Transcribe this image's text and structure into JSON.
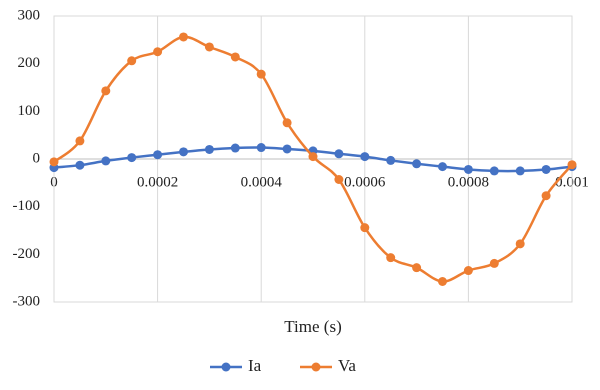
{
  "chart_data": {
    "type": "line",
    "x_label": "Time (s)",
    "x": [
      0,
      5e-05,
      0.0001,
      0.00015,
      0.0002,
      0.00025,
      0.0003,
      0.00035,
      0.0004,
      0.00045,
      0.0005,
      0.00055,
      0.0006,
      0.00065,
      0.0007,
      0.00075,
      0.0008,
      0.00085,
      0.0009,
      0.00095,
      0.001
    ],
    "series": [
      {
        "name": "Ia",
        "color": "#4472c4",
        "values": [
          -18,
          -13,
          -4,
          3,
          9,
          15,
          20,
          23,
          24,
          21,
          17,
          11,
          5,
          -3,
          -10,
          -16,
          -22,
          -25,
          -25,
          -22,
          -16
        ]
      },
      {
        "name": "Va",
        "color": "#ed7d31",
        "values": [
          -6,
          38,
          143,
          206,
          225,
          256,
          235,
          214,
          178,
          76,
          5,
          -43,
          -144,
          -207,
          -228,
          -257,
          -234,
          -219,
          -178,
          -77,
          -12
        ]
      }
    ],
    "xlim": [
      0,
      0.001
    ],
    "xticks": [
      0,
      0.0002,
      0.0004,
      0.0006,
      0.0008,
      0.001
    ],
    "ylim": [
      -300,
      300
    ],
    "yticks": [
      -300,
      -200,
      -100,
      0,
      100,
      200,
      300
    ],
    "grid": "x",
    "smooth": true,
    "markers": true,
    "legend": "bottom"
  }
}
